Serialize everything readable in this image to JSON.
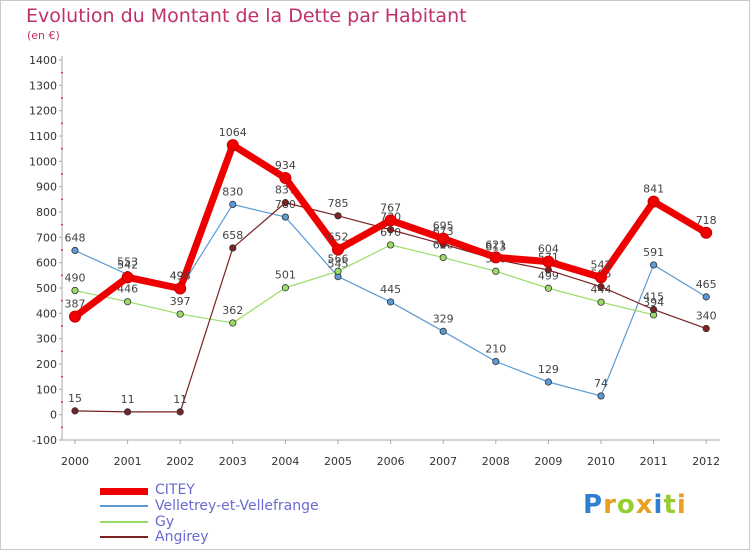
{
  "chart_data": {
    "type": "line",
    "title": "Evolution du Montant de la Dette par Habitant",
    "unit_label": "(en €)",
    "xlabel": "",
    "ylabel": "",
    "ylim": [
      -100,
      1400
    ],
    "yticks": [
      "-100",
      "0",
      "100",
      "200",
      "300",
      "400",
      "500",
      "600",
      "700",
      "800",
      "900",
      "1000",
      "1100",
      "1200",
      "1300",
      "1400"
    ],
    "categories": [
      "2000",
      "2001",
      "2002",
      "2003",
      "2004",
      "2005",
      "2006",
      "2007",
      "2008",
      "2009",
      "2010",
      "2011",
      "2012"
    ],
    "series": [
      {
        "name": "Velletrey-et-Vellefrange",
        "color": "#5b9bd5",
        "values": [
          648,
          553,
          498,
          830,
          780,
          545,
          445,
          329,
          210,
          129,
          74,
          591,
          465
        ]
      },
      {
        "name": "Gy",
        "color": "#99dd66",
        "values": [
          490,
          446,
          397,
          362,
          501,
          566,
          670,
          620,
          566,
          499,
          444,
          394,
          null
        ]
      },
      {
        "name": "Angirey",
        "color": "#7b2222",
        "values": [
          15,
          11,
          11,
          658,
          837,
          785,
          730,
          673,
          613,
          571,
          505,
          415,
          340
        ]
      },
      {
        "name": "CITEY",
        "color": "#ee0000",
        "values": [
          387,
          542,
          498,
          1064,
          934,
          652,
          767,
          695,
          621,
          604,
          542,
          841,
          718
        ]
      }
    ],
    "legend": [
      "CITEY",
      "Velletrey-et-Vellefrange",
      "Gy",
      "Angirey"
    ],
    "grid": false
  },
  "brand": {
    "letters": [
      "P",
      "r",
      "o",
      "x",
      "i",
      "t",
      "i"
    ],
    "colors": [
      "#2f7fd0",
      "#e8a020",
      "#9c3",
      "#e8a020",
      "#2f7fd0",
      "#9c3",
      "#e8a020"
    ]
  }
}
